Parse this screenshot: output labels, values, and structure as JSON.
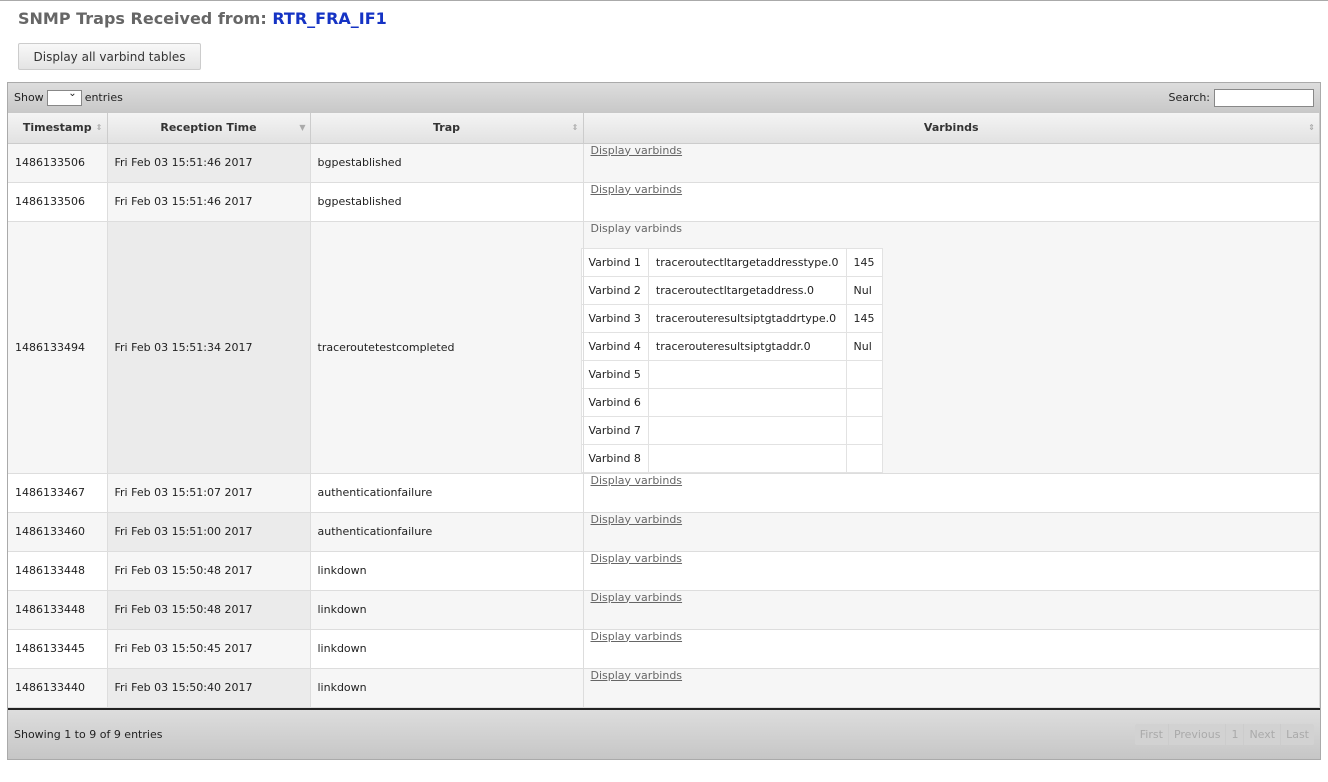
{
  "header": {
    "title": "SNMP Traps Received from:",
    "device": "RTR_FRA_IF1"
  },
  "display_all_button": "Display all varbind tables",
  "toolbar": {
    "show_label": "Show",
    "entries_label": "entries",
    "search_label": "Search:",
    "search_value": ""
  },
  "columns": [
    "Timestamp",
    "Reception Time",
    "Trap",
    "Varbinds"
  ],
  "rows": [
    {
      "timestamp": "1486133506",
      "reception": "Fri Feb 03 15:51:46 2017",
      "trap": "bgpestablished",
      "link": "Display varbinds"
    },
    {
      "timestamp": "1486133506",
      "reception": "Fri Feb 03 15:51:46 2017",
      "trap": "bgpestablished",
      "link": "Display varbinds"
    },
    {
      "timestamp": "1486133494",
      "reception": "Fri Feb 03 15:51:34 2017",
      "trap": "traceroutetestcompleted",
      "link": "Display varbinds",
      "expanded": true,
      "varbinds": [
        [
          "Varbind 1",
          "traceroutectltargetaddresstype.0",
          "145"
        ],
        [
          "Varbind 2",
          "traceroutectltargetaddress.0",
          "Nul"
        ],
        [
          "Varbind 3",
          "tracerouteresultsiptgtaddrtype.0",
          "145"
        ],
        [
          "Varbind 4",
          "tracerouteresultsiptgtaddr.0",
          "Nul"
        ],
        [
          "Varbind 5",
          "",
          ""
        ],
        [
          "Varbind 6",
          "",
          ""
        ],
        [
          "Varbind 7",
          "",
          ""
        ],
        [
          "Varbind 8",
          "",
          ""
        ]
      ]
    },
    {
      "timestamp": "1486133467",
      "reception": "Fri Feb 03 15:51:07 2017",
      "trap": "authenticationfailure",
      "link": "Display varbinds"
    },
    {
      "timestamp": "1486133460",
      "reception": "Fri Feb 03 15:51:00 2017",
      "trap": "authenticationfailure",
      "link": "Display varbinds"
    },
    {
      "timestamp": "1486133448",
      "reception": "Fri Feb 03 15:50:48 2017",
      "trap": "linkdown",
      "link": "Display varbinds"
    },
    {
      "timestamp": "1486133448",
      "reception": "Fri Feb 03 15:50:48 2017",
      "trap": "linkdown",
      "link": "Display varbinds"
    },
    {
      "timestamp": "1486133445",
      "reception": "Fri Feb 03 15:50:45 2017",
      "trap": "linkdown",
      "link": "Display varbinds"
    },
    {
      "timestamp": "1486133440",
      "reception": "Fri Feb 03 15:50:40 2017",
      "trap": "linkdown",
      "link": "Display varbinds"
    }
  ],
  "footer": {
    "info": "Showing 1 to 9 of 9 entries",
    "pagination": [
      "First",
      "Previous",
      "1",
      "Next",
      "Last"
    ]
  }
}
